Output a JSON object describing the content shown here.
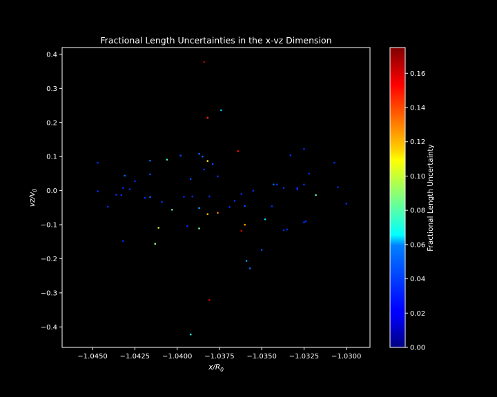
{
  "chart_data": {
    "type": "scatter",
    "title": "Fractional Length Uncertainties in the x-vz Dimension",
    "xlabel": "x/R",
    "xlabel_sub": "0",
    "ylabel": "vz/v",
    "ylabel_sub": "0",
    "colorbar_label": "Fractional Length Uncertainty",
    "colormap": "jet",
    "background": "#000000",
    "xlim": [
      -1.0468,
      -1.0286
    ],
    "ylim": [
      -0.46,
      0.42
    ],
    "clim": [
      0.0,
      0.175
    ],
    "xticks": [
      -1.045,
      -1.0425,
      -1.04,
      -1.0375,
      -1.035,
      -1.0325,
      -1.03
    ],
    "xtick_labels": [
      "−1.0450",
      "−1.0425",
      "−1.0400",
      "−1.0375",
      "−1.0350",
      "−1.0325",
      "−1.0300"
    ],
    "yticks": [
      -0.4,
      -0.3,
      -0.2,
      -0.1,
      0.0,
      0.1,
      0.2,
      0.3,
      0.4
    ],
    "ytick_labels": [
      "−0.4",
      "−0.3",
      "−0.2",
      "−0.1",
      "0.0",
      "0.1",
      "0.2",
      "0.3",
      "0.4"
    ],
    "cticks": [
      0.0,
      0.02,
      0.04,
      0.06,
      0.08,
      0.1,
      0.12,
      0.14,
      0.16
    ],
    "ctick_labels": [
      "0.00",
      "0.02",
      "0.04",
      "0.06",
      "0.08",
      "0.10",
      "0.12",
      "0.14",
      "0.16"
    ],
    "points": [
      {
        "x": -1.0384,
        "y": 0.378,
        "c": 0.165
      },
      {
        "x": -1.0382,
        "y": 0.214,
        "c": 0.145
      },
      {
        "x": -1.0374,
        "y": 0.236,
        "c": 0.055
      },
      {
        "x": -1.0364,
        "y": 0.116,
        "c": 0.15
      },
      {
        "x": -1.0382,
        "y": 0.087,
        "c": 0.11
      },
      {
        "x": -1.0406,
        "y": 0.091,
        "c": 0.075
      },
      {
        "x": -1.0387,
        "y": 0.108,
        "c": 0.04
      },
      {
        "x": -1.0385,
        "y": 0.1,
        "c": 0.04
      },
      {
        "x": -1.0398,
        "y": 0.103,
        "c": 0.035
      },
      {
        "x": -1.0416,
        "y": 0.088,
        "c": 0.04
      },
      {
        "x": -1.0379,
        "y": 0.078,
        "c": 0.035
      },
      {
        "x": -1.0447,
        "y": 0.082,
        "c": 0.03
      },
      {
        "x": -1.0431,
        "y": 0.044,
        "c": 0.04
      },
      {
        "x": -1.0416,
        "y": 0.048,
        "c": 0.035
      },
      {
        "x": -1.0376,
        "y": 0.042,
        "c": 0.03
      },
      {
        "x": -1.0384,
        "y": 0.062,
        "c": 0.03
      },
      {
        "x": -1.0392,
        "y": 0.034,
        "c": 0.035
      },
      {
        "x": -1.0425,
        "y": 0.028,
        "c": 0.03
      },
      {
        "x": -1.0428,
        "y": 0.004,
        "c": 0.03
      },
      {
        "x": -1.0432,
        "y": 0.008,
        "c": 0.03
      },
      {
        "x": -1.0447,
        "y": -0.002,
        "c": 0.03
      },
      {
        "x": -1.0436,
        "y": -0.012,
        "c": 0.03
      },
      {
        "x": -1.0433,
        "y": -0.013,
        "c": 0.03
      },
      {
        "x": -1.0419,
        "y": -0.021,
        "c": 0.03
      },
      {
        "x": -1.0416,
        "y": -0.019,
        "c": 0.04
      },
      {
        "x": -1.0409,
        "y": -0.033,
        "c": 0.03
      },
      {
        "x": -1.0441,
        "y": -0.047,
        "c": 0.03
      },
      {
        "x": -1.0396,
        "y": -0.018,
        "c": 0.03
      },
      {
        "x": -1.0391,
        "y": -0.017,
        "c": 0.03
      },
      {
        "x": -1.0381,
        "y": -0.017,
        "c": 0.03
      },
      {
        "x": -1.0366,
        "y": -0.03,
        "c": 0.03
      },
      {
        "x": -1.0362,
        "y": -0.01,
        "c": 0.03
      },
      {
        "x": -1.0369,
        "y": -0.048,
        "c": 0.03
      },
      {
        "x": -1.036,
        "y": -0.045,
        "c": 0.035
      },
      {
        "x": -1.0387,
        "y": -0.051,
        "c": 0.05
      },
      {
        "x": -1.0403,
        "y": -0.056,
        "c": 0.08
      },
      {
        "x": -1.0382,
        "y": -0.069,
        "c": 0.12
      },
      {
        "x": -1.0376,
        "y": -0.065,
        "c": 0.13
      },
      {
        "x": -1.0394,
        "y": -0.104,
        "c": 0.03
      },
      {
        "x": -1.0387,
        "y": -0.111,
        "c": 0.085
      },
      {
        "x": -1.0411,
        "y": -0.109,
        "c": 0.1
      },
      {
        "x": -1.036,
        "y": -0.1,
        "c": 0.125
      },
      {
        "x": -1.0362,
        "y": -0.118,
        "c": 0.16
      },
      {
        "x": -1.0348,
        "y": -0.084,
        "c": 0.06
      },
      {
        "x": -1.0344,
        "y": -0.046,
        "c": 0.03
      },
      {
        "x": -1.0432,
        "y": -0.148,
        "c": 0.03
      },
      {
        "x": -1.0413,
        "y": -0.156,
        "c": 0.09
      },
      {
        "x": -1.035,
        "y": -0.174,
        "c": 0.035
      },
      {
        "x": -1.0359,
        "y": -0.206,
        "c": 0.05
      },
      {
        "x": -1.0357,
        "y": -0.228,
        "c": 0.04
      },
      {
        "x": -1.0381,
        "y": -0.321,
        "c": 0.16
      },
      {
        "x": -1.0392,
        "y": -0.422,
        "c": 0.07
      },
      {
        "x": -1.0343,
        "y": 0.018,
        "c": 0.04
      },
      {
        "x": -1.0341,
        "y": 0.018,
        "c": 0.03
      },
      {
        "x": -1.0337,
        "y": 0.008,
        "c": 0.03
      },
      {
        "x": -1.0329,
        "y": 0.008,
        "c": 0.03
      },
      {
        "x": -1.0329,
        "y": 0.004,
        "c": 0.03
      },
      {
        "x": -1.0333,
        "y": 0.104,
        "c": 0.03
      },
      {
        "x": -1.0325,
        "y": 0.122,
        "c": 0.03
      },
      {
        "x": -1.0322,
        "y": 0.05,
        "c": 0.03
      },
      {
        "x": -1.0307,
        "y": 0.082,
        "c": 0.03
      },
      {
        "x": -1.0305,
        "y": 0.01,
        "c": 0.03
      },
      {
        "x": -1.0325,
        "y": 0.018,
        "c": 0.03
      },
      {
        "x": -1.0318,
        "y": -0.013,
        "c": 0.08
      },
      {
        "x": -1.0335,
        "y": -0.114,
        "c": 0.03
      },
      {
        "x": -1.0337,
        "y": -0.116,
        "c": 0.03
      },
      {
        "x": -1.0325,
        "y": -0.093,
        "c": 0.03
      },
      {
        "x": -1.0324,
        "y": -0.09,
        "c": 0.03
      },
      {
        "x": -1.03,
        "y": -0.038,
        "c": 0.03
      },
      {
        "x": -1.0355,
        "y": 0.0,
        "c": 0.03
      }
    ]
  }
}
